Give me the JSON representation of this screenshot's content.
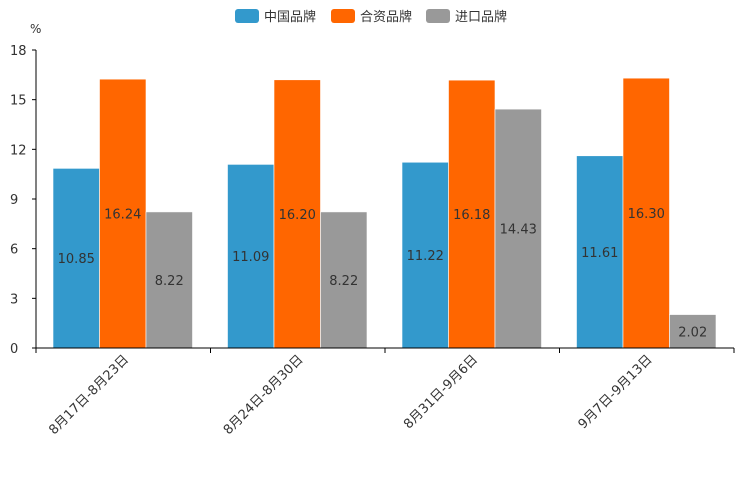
{
  "chart_data": {
    "type": "bar",
    "unit_label": "%",
    "categories": [
      "8月17日-8月23日",
      "8月24日-8月30日",
      "8月31日-9月6日",
      "9月7日-9月13日"
    ],
    "series": [
      {
        "name": "中国品牌",
        "color": "#3399cc",
        "values": [
          10.85,
          11.09,
          11.22,
          11.61
        ],
        "labels": [
          "10.85",
          "11.09",
          "11.22",
          "11.61"
        ]
      },
      {
        "name": "合资品牌",
        "color": "#ff6600",
        "values": [
          16.24,
          16.2,
          16.18,
          16.3
        ],
        "labels": [
          "16.24",
          "16.20",
          "16.18",
          "16.30"
        ]
      },
      {
        "name": "进口品牌",
        "color": "#999999",
        "values": [
          8.22,
          8.22,
          14.43,
          2.02
        ],
        "labels": [
          "8.22",
          "8.22",
          "14.43",
          "2.02"
        ]
      }
    ],
    "ylim": [
      0,
      18
    ],
    "yticks": [
      0,
      3,
      6,
      9,
      12,
      15,
      18
    ],
    "legend_position": "top-center",
    "grid": false
  }
}
